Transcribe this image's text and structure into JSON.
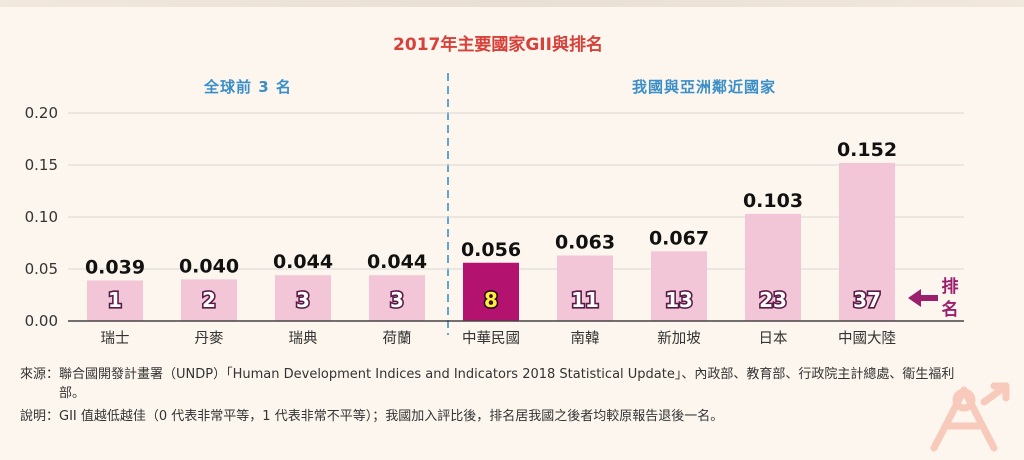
{
  "chart_data": {
    "type": "bar",
    "title": "2017年主要國家GII與排名",
    "groups": [
      {
        "label": "全球前 3 名"
      },
      {
        "label": "我國與亞洲鄰近國家"
      }
    ],
    "categories": [
      "瑞士",
      "丹麥",
      "瑞典",
      "荷蘭",
      "中華民國",
      "南韓",
      "新加坡",
      "日本",
      "中國大陸"
    ],
    "values": [
      0.039,
      0.04,
      0.044,
      0.044,
      0.056,
      0.063,
      0.067,
      0.103,
      0.152
    ],
    "value_labels": [
      "0.039",
      "0.040",
      "0.044",
      "0.044",
      "0.056",
      "0.063",
      "0.067",
      "0.103",
      "0.152"
    ],
    "ranks": [
      "1",
      "2",
      "3",
      "3",
      "8",
      "11",
      "13",
      "23",
      "37"
    ],
    "highlight_index": 4,
    "ylim": [
      0,
      0.2
    ],
    "yticks": [
      "0.00",
      "0.05",
      "0.10",
      "0.15",
      "0.20"
    ],
    "ytick_values": [
      0,
      0.05,
      0.1,
      0.15,
      0.2
    ],
    "rank_label": [
      "排",
      "名"
    ],
    "grid": true,
    "xlabel": "",
    "ylabel": ""
  },
  "colors": {
    "bar": "#f2c6d6",
    "bar_highlight": "#b3126e",
    "title": "#d8403a",
    "group": "#3b8fc8",
    "divider": "#3b8fc8",
    "rank_arrow": "#9c1f6e",
    "grid": "#d8d8d8",
    "background": "#fdf6ee"
  },
  "notes": {
    "source_lead": "來源：",
    "source_text": "聯合國開發計畫署（UNDP）「Human Development Indices and Indicators 2018 Statistical Update」、內政部、教育部、行政院主計總處、衛生福利部。",
    "explain_lead": "說明：",
    "explain_text": "GII 值越低越佳（0 代表非常平等，1 代表非常不平等）；我國加入評比後，排名居我國之後者均較原報告退後一名。"
  },
  "logo": {
    "icon": "gender-equality-logo-icon"
  }
}
